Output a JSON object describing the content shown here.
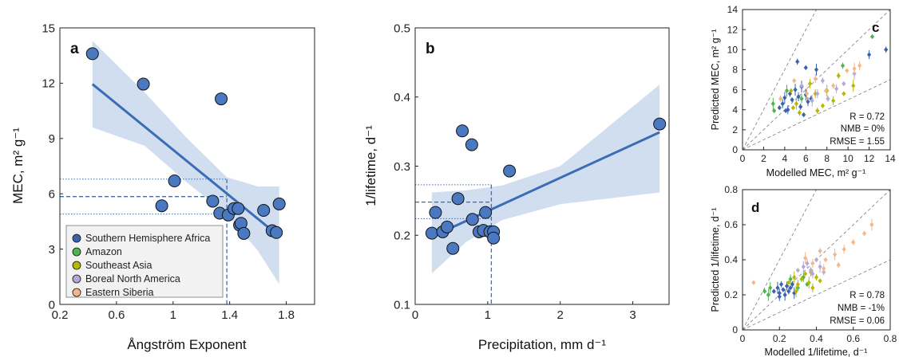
{
  "colors": {
    "line": "#3a6db5",
    "band": "#c9d8ec",
    "marker": "#4a79c1",
    "diag": "#888888"
  },
  "legend": [
    {
      "label": "Southern Hemisphere Africa",
      "color": "#3a63ad"
    },
    {
      "label": "Amazon",
      "color": "#4fb34f"
    },
    {
      "label": "Southeast Asia",
      "color": "#b8b800"
    },
    {
      "label": "Boreal North America",
      "color": "#b6a8d6"
    },
    {
      "label": "Eastern Siberia",
      "color": "#f3b88a"
    }
  ],
  "chart_data": [
    {
      "panel": "a",
      "type": "scatter",
      "xlabel": "Ångström Exponent",
      "ylabel": "MEC, m² g⁻¹",
      "xlim": [
        0.2,
        2.0
      ],
      "ylim": [
        0,
        15
      ],
      "xticks": [
        "0.2",
        "0.6",
        "1",
        "1.4",
        "1.8"
      ],
      "xtick_values": [
        0.2,
        0.6,
        1.0,
        1.4,
        1.8
      ],
      "yticks": [
        "0",
        "3",
        "6",
        "9",
        "12",
        "15"
      ],
      "ytick_values": [
        0,
        3,
        6,
        9,
        12,
        15
      ],
      "points": [
        [
          0.43,
          13.6
        ],
        [
          0.79,
          11.95
        ],
        [
          0.92,
          5.35
        ],
        [
          1.01,
          6.7
        ],
        [
          1.28,
          5.6
        ],
        [
          1.33,
          4.95
        ],
        [
          1.34,
          11.15
        ],
        [
          1.39,
          4.85
        ],
        [
          1.43,
          5.2
        ],
        [
          1.46,
          5.2
        ],
        [
          1.47,
          4.3
        ],
        [
          1.48,
          4.4
        ],
        [
          1.5,
          3.85
        ],
        [
          1.64,
          5.1
        ],
        [
          1.7,
          4.0
        ],
        [
          1.73,
          3.9
        ],
        [
          1.75,
          5.45
        ]
      ],
      "fit": [
        [
          0.43,
          11.95
        ],
        [
          1.75,
          3.7
        ]
      ],
      "band_upper": [
        [
          0.43,
          14.3
        ],
        [
          0.8,
          11.5
        ],
        [
          1.1,
          9.0
        ],
        [
          1.38,
          6.9
        ],
        [
          1.6,
          6.4
        ],
        [
          1.75,
          6.4
        ]
      ],
      "band_lower": [
        [
          0.43,
          9.6
        ],
        [
          0.8,
          8.6
        ],
        [
          1.1,
          6.6
        ],
        [
          1.38,
          4.9
        ],
        [
          1.6,
          2.9
        ],
        [
          1.75,
          1.1
        ]
      ],
      "marker_x": 1.38,
      "marker_y": 5.85,
      "marker_y_lo": 4.9,
      "marker_y_hi": 6.8
    },
    {
      "panel": "b",
      "type": "scatter",
      "xlabel": "Precipitation, mm d⁻¹",
      "ylabel": "1/lifetime, d⁻¹",
      "xlim": [
        0,
        3.5
      ],
      "ylim": [
        0.1,
        0.5
      ],
      "xticks": [
        "0",
        "1",
        "2",
        "3"
      ],
      "xtick_values": [
        0,
        1,
        2,
        3
      ],
      "yticks": [
        "0.1",
        "0.2",
        "0.3",
        "0.4",
        "0.5"
      ],
      "ytick_values": [
        0.1,
        0.2,
        0.3,
        0.4,
        0.5
      ],
      "points": [
        [
          0.23,
          0.203
        ],
        [
          0.28,
          0.233
        ],
        [
          0.38,
          0.205
        ],
        [
          0.44,
          0.212
        ],
        [
          0.52,
          0.181
        ],
        [
          0.59,
          0.253
        ],
        [
          0.65,
          0.351
        ],
        [
          0.78,
          0.331
        ],
        [
          0.79,
          0.223
        ],
        [
          0.88,
          0.205
        ],
        [
          0.94,
          0.207
        ],
        [
          0.97,
          0.233
        ],
        [
          1.03,
          0.205
        ],
        [
          1.08,
          0.205
        ],
        [
          1.08,
          0.196
        ],
        [
          1.3,
          0.293
        ],
        [
          3.37,
          0.361
        ]
      ],
      "fit": [
        [
          0.23,
          0.198
        ],
        [
          3.37,
          0.349
        ]
      ],
      "band_upper": [
        [
          0.23,
          0.262
        ],
        [
          0.7,
          0.265
        ],
        [
          1.2,
          0.272
        ],
        [
          2.0,
          0.3
        ],
        [
          3.37,
          0.418
        ]
      ],
      "band_lower": [
        [
          0.23,
          0.145
        ],
        [
          0.7,
          0.19
        ],
        [
          1.2,
          0.222
        ],
        [
          2.0,
          0.245
        ],
        [
          3.37,
          0.262
        ]
      ],
      "marker_x": 1.05,
      "marker_y": 0.248,
      "marker_y_lo": 0.224,
      "marker_y_hi": 0.273
    },
    {
      "panel": "c",
      "type": "scatter",
      "xlabel": "Modelled MEC, m² g⁻¹",
      "ylabel": "Predicted MEC, m² g⁻¹",
      "xlim": [
        0,
        14
      ],
      "ylim": [
        0,
        14
      ],
      "xticks": [
        "0",
        "2",
        "4",
        "6",
        "8",
        "10",
        "12",
        "14"
      ],
      "xtick_values": [
        0,
        2,
        4,
        6,
        8,
        10,
        12,
        14
      ],
      "yticks": [
        "0",
        "2",
        "4",
        "6",
        "8",
        "10",
        "12",
        "14"
      ],
      "ytick_values": [
        0,
        2,
        4,
        6,
        8,
        10,
        12,
        14
      ],
      "stats": [
        "R = 0.72",
        "NMB = 0%",
        "RMSE = 1.55"
      ],
      "groups": [
        {
          "color": "#3a63ad",
          "points": [
            [
              3.5,
              4.2
            ],
            [
              4.0,
              5.2
            ],
            [
              4.3,
              4.0
            ],
            [
              4.5,
              5.6
            ],
            [
              4.7,
              5.0
            ],
            [
              5.0,
              6.0
            ],
            [
              5.3,
              5.3
            ],
            [
              5.5,
              4.3
            ],
            [
              5.8,
              3.5
            ],
            [
              6.0,
              5.5
            ],
            [
              6.2,
              4.8
            ],
            [
              5.2,
              8.8
            ],
            [
              6.0,
              8.2
            ],
            [
              7.0,
              8.0
            ],
            [
              12.0,
              9.5
            ],
            [
              13.6,
              10.0
            ],
            [
              4.1,
              3.9
            ],
            [
              5.6,
              6.3
            ],
            [
              3.8,
              4.6
            ],
            [
              6.5,
              5.1
            ]
          ]
        },
        {
          "color": "#4fb34f",
          "points": [
            [
              3.0,
              3.9
            ],
            [
              4.2,
              5.9
            ],
            [
              5.6,
              5.1
            ],
            [
              9.5,
              8.4
            ],
            [
              12.3,
              11.3
            ],
            [
              2.9,
              4.6
            ]
          ]
        },
        {
          "color": "#b8b800",
          "points": [
            [
              4.6,
              5.9
            ],
            [
              5.1,
              4.6
            ],
            [
              6.4,
              6.6
            ],
            [
              7.1,
              3.9
            ],
            [
              7.6,
              4.4
            ],
            [
              8.0,
              5.9
            ],
            [
              8.6,
              4.9
            ],
            [
              9.1,
              7.4
            ],
            [
              9.6,
              5.6
            ],
            [
              10.5,
              6.4
            ],
            [
              6.9,
              5.6
            ],
            [
              5.4,
              3.7
            ],
            [
              4.8,
              4.2
            ]
          ]
        },
        {
          "color": "#b6a8d6",
          "points": [
            [
              5.6,
              6.4
            ],
            [
              6.6,
              4.9
            ],
            [
              7.1,
              5.6
            ],
            [
              8.1,
              5.1
            ],
            [
              9.6,
              6.6
            ],
            [
              10.6,
              7.6
            ],
            [
              8.9,
              6.1
            ],
            [
              7.6,
              6.9
            ]
          ]
        },
        {
          "color": "#f3b88a",
          "points": [
            [
              4.9,
              6.9
            ],
            [
              6.1,
              5.6
            ],
            [
              6.9,
              7.1
            ],
            [
              8.6,
              6.4
            ],
            [
              9.9,
              7.9
            ],
            [
              10.6,
              8.1
            ],
            [
              11.1,
              8.4
            ],
            [
              3.6,
              5.1
            ],
            [
              7.9,
              5.9
            ]
          ]
        }
      ]
    },
    {
      "panel": "d",
      "type": "scatter",
      "xlabel": "Modelled 1/lifetime, d⁻¹",
      "ylabel": "Predicted 1/lifetime, d⁻¹",
      "xlim": [
        0,
        0.8
      ],
      "ylim": [
        0,
        0.8
      ],
      "xticks": [
        "0",
        "0.2",
        "0.4",
        "0.6",
        "0.8"
      ],
      "xtick_values": [
        0,
        0.2,
        0.4,
        0.6,
        0.8
      ],
      "yticks": [
        "0",
        "0.2",
        "0.4",
        "0.6",
        "0.8"
      ],
      "ytick_values": [
        0,
        0.2,
        0.4,
        0.6,
        0.8
      ],
      "stats": [
        "R = 0.78",
        "NMB = -1%",
        "RMSE = 0.06"
      ],
      "groups": [
        {
          "color": "#3a63ad",
          "points": [
            [
              0.17,
              0.22
            ],
            [
              0.19,
              0.24
            ],
            [
              0.2,
              0.21
            ],
            [
              0.21,
              0.26
            ],
            [
              0.22,
              0.23
            ],
            [
              0.23,
              0.2
            ],
            [
              0.24,
              0.25
            ],
            [
              0.25,
              0.22
            ],
            [
              0.26,
              0.24
            ],
            [
              0.28,
              0.21
            ],
            [
              0.2,
              0.19
            ],
            [
              0.27,
              0.26
            ]
          ]
        },
        {
          "color": "#4fb34f",
          "points": [
            [
              0.12,
              0.22
            ],
            [
              0.15,
              0.24
            ],
            [
              0.26,
              0.29
            ],
            [
              0.3,
              0.24
            ],
            [
              0.35,
              0.26
            ],
            [
              0.14,
              0.2
            ],
            [
              0.33,
              0.3
            ]
          ]
        },
        {
          "color": "#b8b800",
          "points": [
            [
              0.25,
              0.27
            ],
            [
              0.28,
              0.3
            ],
            [
              0.3,
              0.26
            ],
            [
              0.32,
              0.29
            ],
            [
              0.34,
              0.32
            ],
            [
              0.36,
              0.27
            ],
            [
              0.38,
              0.24
            ],
            [
              0.4,
              0.3
            ],
            [
              0.42,
              0.28
            ],
            [
              0.29,
              0.22
            ],
            [
              0.37,
              0.33
            ]
          ]
        },
        {
          "color": "#b6a8d6",
          "points": [
            [
              0.3,
              0.34
            ],
            [
              0.33,
              0.36
            ],
            [
              0.35,
              0.38
            ],
            [
              0.37,
              0.34
            ],
            [
              0.4,
              0.4
            ],
            [
              0.42,
              0.36
            ],
            [
              0.38,
              0.32
            ],
            [
              0.44,
              0.33
            ]
          ]
        },
        {
          "color": "#f3b88a",
          "points": [
            [
              0.06,
              0.27
            ],
            [
              0.34,
              0.41
            ],
            [
              0.38,
              0.38
            ],
            [
              0.42,
              0.45
            ],
            [
              0.45,
              0.4
            ],
            [
              0.5,
              0.43
            ],
            [
              0.55,
              0.46
            ],
            [
              0.6,
              0.5
            ],
            [
              0.66,
              0.55
            ],
            [
              0.7,
              0.6
            ],
            [
              0.44,
              0.35
            ],
            [
              0.52,
              0.37
            ]
          ]
        }
      ]
    }
  ]
}
